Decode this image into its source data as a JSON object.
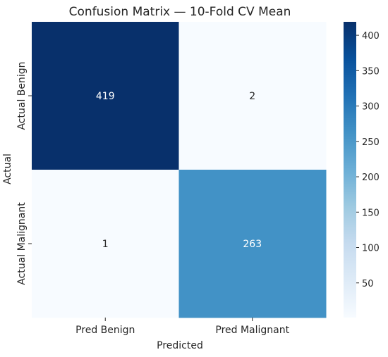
{
  "chart_data": {
    "type": "heatmap",
    "title": "Confusion Matrix — 10-Fold CV Mean",
    "xlabel": "Predicted",
    "ylabel": "Actual",
    "x_categories": [
      "Pred Benign",
      "Pred Malignant"
    ],
    "y_categories": [
      "Actual Benign",
      "Actual Malignant"
    ],
    "values": [
      [
        419,
        2
      ],
      [
        1,
        263
      ]
    ],
    "annotations": [
      "419",
      "2",
      "1",
      "263"
    ],
    "colormap": "Blues",
    "colorbar": {
      "range": [
        1,
        419
      ],
      "ticks": [
        50,
        100,
        150,
        200,
        250,
        300,
        350,
        400
      ],
      "tick_labels": [
        "50",
        "100",
        "150",
        "200",
        "250",
        "300",
        "350",
        "400"
      ]
    },
    "colors": {
      "dark_cell": "#08306b",
      "mid_cell": "#3a8fc8",
      "light_cell": "#f7fbff",
      "text_light": "#ffffff",
      "text_dark": "#262626"
    }
  }
}
